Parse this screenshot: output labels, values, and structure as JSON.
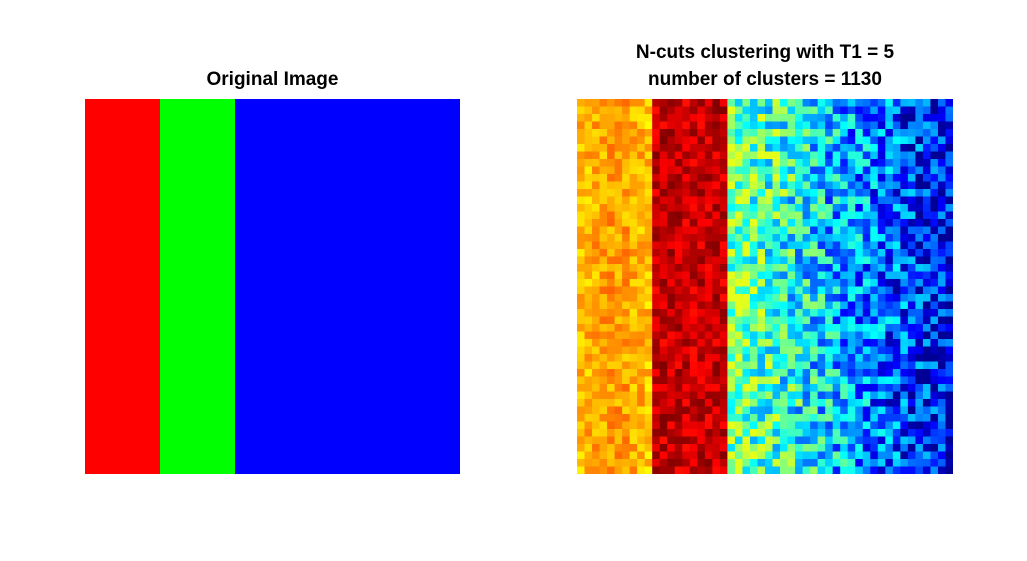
{
  "left_panel": {
    "title": "Original Image",
    "bands": [
      {
        "name": "red-band",
        "color": "#ff0000",
        "fraction": 0.2
      },
      {
        "name": "green-band",
        "color": "#00ff00",
        "fraction": 0.2
      },
      {
        "name": "blue-band",
        "color": "#0000ff",
        "fraction": 0.6
      }
    ]
  },
  "right_panel": {
    "title_line1": "N-cuts clustering with T1 = 5",
    "title_line2": "number of clusters = 1130",
    "grid_columns": 50,
    "grid_rows": 50,
    "colormap": "jet",
    "column_groups": [
      {
        "region": "red",
        "fraction": 0.2,
        "value_range": [
          0.6,
          0.8
        ]
      },
      {
        "region": "green",
        "fraction": 0.2,
        "value_range": [
          0.85,
          1.0
        ]
      },
      {
        "region": "blue",
        "fraction": 0.6,
        "value_range": [
          0.0,
          0.55
        ]
      }
    ]
  }
}
